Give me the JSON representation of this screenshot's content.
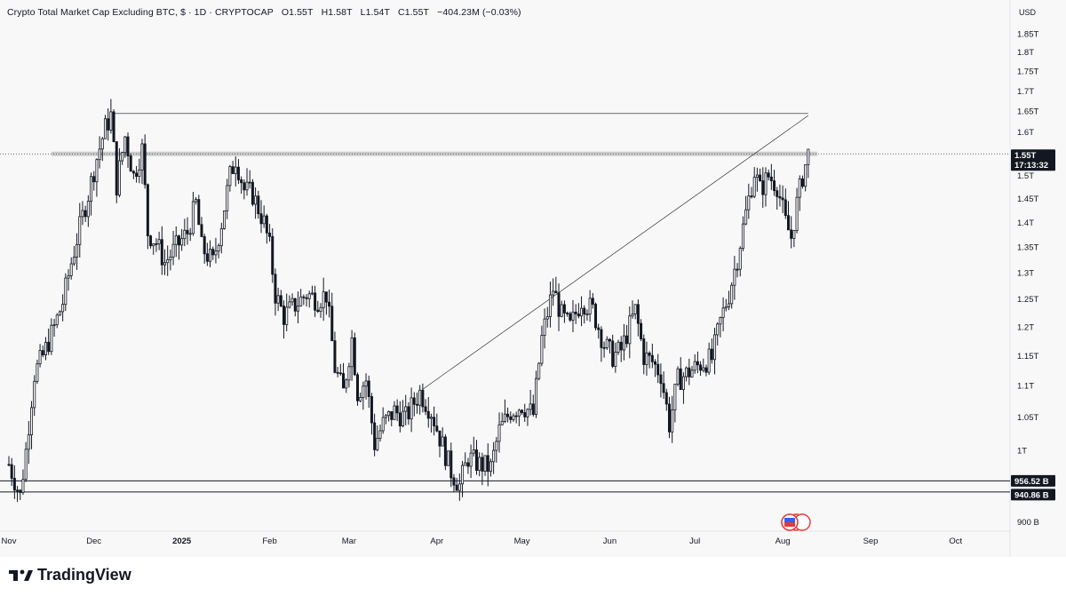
{
  "header": {
    "title": "Crypto Total Market Cap Excluding BTC, $ · 1D · CRYPTOCAP",
    "open": "O1.55T",
    "high": "H1.58T",
    "low": "L1.54T",
    "close": "C1.55T",
    "change": "−404.23M (−0.03%)"
  },
  "currency": "USD",
  "price_tag": {
    "price": "1.55T",
    "countdown": "17:13:32"
  },
  "level_tags": [
    "956.52 B",
    "940.86 B"
  ],
  "brand": "TradingView",
  "colors": {
    "candle": "#131722",
    "background": "#f8f8f8",
    "tag_bg": "#131722",
    "tag_text": "#ffffff",
    "resistance_band": "#bdbdbd",
    "indicator_red": "#e53935",
    "indicator_blue": "#2962ff"
  },
  "icons": [
    "tradingview-logo-icon",
    "economic-events-flag-icon"
  ],
  "chart_data": {
    "type": "candlestick",
    "title": "Crypto Total Market Cap Excluding BTC, $ · 1D · CRYPTOCAP",
    "ylabel": "USD",
    "y_ticks": [
      "1.85T",
      "1.8T",
      "1.75T",
      "1.7T",
      "1.65T",
      "1.6T",
      "1.5T",
      "1.45T",
      "1.4T",
      "1.35T",
      "1.3T",
      "1.25T",
      "1.2T",
      "1.15T",
      "1.1T",
      "1.05T",
      "1T",
      "900 B"
    ],
    "y_tick_values": [
      1850,
      1800,
      1750,
      1700,
      1650,
      1600,
      1500,
      1450,
      1400,
      1350,
      1300,
      1250,
      1200,
      1150,
      1100,
      1050,
      1000,
      900
    ],
    "x_ticks": [
      "Nov",
      "Dec",
      "2025",
      "Feb",
      "Mar",
      "Apr",
      "May",
      "Jun",
      "Jul",
      "Aug",
      "Sep",
      "Oct"
    ],
    "x_tick_dates": [
      "2024-11-01",
      "2024-12-01",
      "2025-01-01",
      "2025-02-01",
      "2025-03-01",
      "2025-04-01",
      "2025-05-01",
      "2025-06-01",
      "2025-07-01",
      "2025-08-01",
      "2025-09-01",
      "2025-10-01"
    ],
    "ylim_billions": [
      888,
      1880
    ],
    "xlim": [
      "2024-11-01",
      "2025-10-18"
    ],
    "value_unit": "billions USD",
    "scale": "log",
    "last_close": 1550,
    "close_path": [
      [
        "2024-11-01",
        980
      ],
      [
        "2024-11-05",
        935
      ],
      [
        "2024-11-07",
        1000
      ],
      [
        "2024-11-10",
        1120
      ],
      [
        "2024-11-13",
        1150
      ],
      [
        "2024-11-17",
        1200
      ],
      [
        "2024-11-20",
        1245
      ],
      [
        "2024-11-23",
        1320
      ],
      [
        "2024-11-26",
        1390
      ],
      [
        "2024-11-29",
        1460
      ],
      [
        "2024-12-02",
        1540
      ],
      [
        "2024-12-05",
        1610
      ],
      [
        "2024-12-07",
        1640
      ],
      [
        "2024-12-09",
        1480
      ],
      [
        "2024-12-12",
        1590
      ],
      [
        "2024-12-15",
        1500
      ],
      [
        "2024-12-18",
        1560
      ],
      [
        "2024-12-20",
        1380
      ],
      [
        "2024-12-23",
        1360
      ],
      [
        "2024-12-26",
        1320
      ],
      [
        "2024-12-30",
        1350
      ],
      [
        "2025-01-03",
        1380
      ],
      [
        "2025-01-06",
        1440
      ],
      [
        "2025-01-08",
        1350
      ],
      [
        "2025-01-12",
        1320
      ],
      [
        "2025-01-15",
        1400
      ],
      [
        "2025-01-18",
        1500
      ],
      [
        "2025-01-20",
        1540
      ],
      [
        "2025-01-23",
        1470
      ],
      [
        "2025-01-26",
        1460
      ],
      [
        "2025-01-30",
        1400
      ],
      [
        "2025-02-01",
        1350
      ],
      [
        "2025-02-03",
        1260
      ],
      [
        "2025-02-06",
        1220
      ],
      [
        "2025-02-10",
        1240
      ],
      [
        "2025-02-14",
        1260
      ],
      [
        "2025-02-18",
        1250
      ],
      [
        "2025-02-21",
        1260
      ],
      [
        "2025-02-24",
        1130
      ],
      [
        "2025-02-27",
        1090
      ],
      [
        "2025-03-02",
        1180
      ],
      [
        "2025-03-04",
        1090
      ],
      [
        "2025-03-07",
        1110
      ],
      [
        "2025-03-10",
        1010
      ],
      [
        "2025-03-13",
        1040
      ],
      [
        "2025-03-17",
        1060
      ],
      [
        "2025-03-21",
        1050
      ],
      [
        "2025-03-26",
        1090
      ],
      [
        "2025-03-30",
        1060
      ],
      [
        "2025-04-02",
        1020
      ],
      [
        "2025-04-06",
        970
      ],
      [
        "2025-04-09",
        950
      ],
      [
        "2025-04-12",
        990
      ],
      [
        "2025-04-16",
        980
      ],
      [
        "2025-04-20",
        975
      ],
      [
        "2025-04-23",
        1030
      ],
      [
        "2025-04-27",
        1060
      ],
      [
        "2025-05-01",
        1070
      ],
      [
        "2025-05-05",
        1055
      ],
      [
        "2025-05-08",
        1180
      ],
      [
        "2025-05-12",
        1270
      ],
      [
        "2025-05-15",
        1220
      ],
      [
        "2025-05-18",
        1200
      ],
      [
        "2025-05-22",
        1250
      ],
      [
        "2025-05-26",
        1230
      ],
      [
        "2025-05-30",
        1170
      ],
      [
        "2025-06-02",
        1150
      ],
      [
        "2025-06-05",
        1160
      ],
      [
        "2025-06-10",
        1230
      ],
      [
        "2025-06-13",
        1150
      ],
      [
        "2025-06-16",
        1140
      ],
      [
        "2025-06-19",
        1120
      ],
      [
        "2025-06-22",
        1040
      ],
      [
        "2025-06-25",
        1110
      ],
      [
        "2025-06-28",
        1120
      ],
      [
        "2025-07-01",
        1130
      ],
      [
        "2025-07-04",
        1140
      ],
      [
        "2025-07-07",
        1145
      ],
      [
        "2025-07-10",
        1210
      ],
      [
        "2025-07-13",
        1260
      ],
      [
        "2025-07-16",
        1330
      ],
      [
        "2025-07-19",
        1420
      ],
      [
        "2025-07-22",
        1510
      ],
      [
        "2025-07-24",
        1470
      ],
      [
        "2025-07-27",
        1500
      ],
      [
        "2025-07-30",
        1480
      ],
      [
        "2025-08-02",
        1400
      ],
      [
        "2025-08-04",
        1370
      ],
      [
        "2025-08-06",
        1440
      ],
      [
        "2025-08-08",
        1500
      ],
      [
        "2025-08-10",
        1550
      ]
    ],
    "annotations": {
      "resistance_zone": [
        1545,
        1555
      ],
      "current_price_line": 1550,
      "support_lines": [
        956.52,
        940.86
      ],
      "top_line": {
        "start_date": "2024-12-07",
        "end_date": "2025-08-10",
        "value": 1645
      },
      "trend_line": {
        "start": [
          "2025-03-27",
          1095
        ],
        "end": [
          "2025-08-10",
          1640
        ]
      }
    }
  }
}
